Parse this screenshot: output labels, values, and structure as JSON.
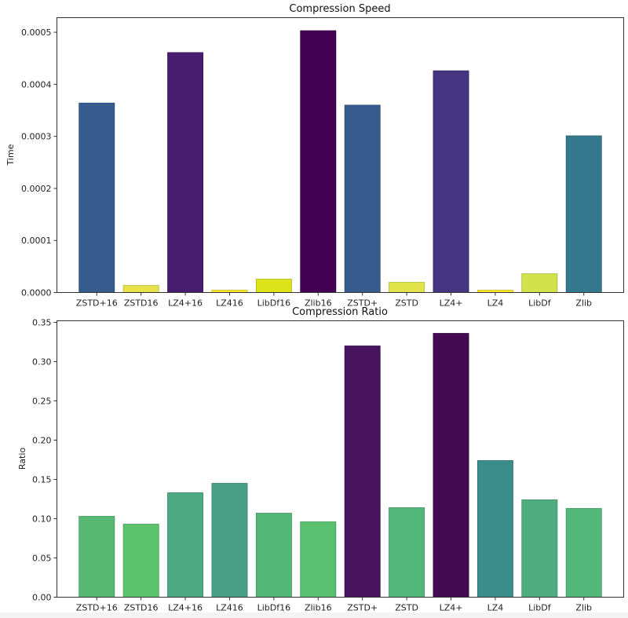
{
  "chart_data": [
    {
      "type": "bar",
      "title": "Compression Speed",
      "xlabel": "",
      "ylabel": "Time",
      "categories": [
        "ZSTD+16",
        "ZSTD16",
        "LZ4+16",
        "LZ416",
        "LibDf16",
        "Zlib16",
        "ZSTD+",
        "ZSTD",
        "LZ4+",
        "LZ4",
        "LibDf",
        "Zlib"
      ],
      "values": [
        0.000364,
        1.36e-05,
        0.000461,
        4.5e-06,
        2.56e-05,
        0.000503,
        0.00036,
        1.96e-05,
        0.000426,
        4.5e-06,
        3.6e-05,
        0.000301
      ],
      "ylim": [
        0,
        0.000528
      ],
      "yticks": [
        0.0,
        0.0001,
        0.0002,
        0.0003,
        0.0004,
        0.0005
      ],
      "ytick_labels": [
        "0.0000",
        "0.0001",
        "0.0002",
        "0.0003",
        "0.0004",
        "0.0005"
      ],
      "colormap": "viridis",
      "bar_colors": [
        "#365c8d",
        "#e8e34a",
        "#481d6f",
        "#fde725",
        "#dde318",
        "#440154",
        "#365c8d",
        "#e2e34a",
        "#453581",
        "#fde725",
        "#d2e24a",
        "#33788d"
      ],
      "grid": false,
      "legend": "none"
    },
    {
      "type": "bar",
      "title": "Compression Ratio",
      "xlabel": "",
      "ylabel": "Ratio",
      "categories": [
        "ZSTD+16",
        "ZSTD16",
        "LZ4+16",
        "LZ416",
        "LibDf16",
        "Zlib16",
        "ZSTD+",
        "ZSTD",
        "LZ4+",
        "LZ4",
        "LibDf",
        "Zlib"
      ],
      "values": [
        0.103,
        0.093,
        0.133,
        0.145,
        0.107,
        0.096,
        0.32,
        0.114,
        0.336,
        0.174,
        0.124,
        0.113
      ],
      "ylim": [
        0,
        0.352
      ],
      "yticks": [
        0.0,
        0.05,
        0.1,
        0.15,
        0.2,
        0.25,
        0.3,
        0.35
      ],
      "ytick_labels": [
        "0.00",
        "0.05",
        "0.10",
        "0.15",
        "0.20",
        "0.25",
        "0.30",
        "0.35"
      ],
      "colormap": "viridis_r",
      "bar_colors": [
        "#55b974",
        "#5ac36b",
        "#4caa82",
        "#47a086",
        "#53b777",
        "#58c06f",
        "#48135f",
        "#52b679",
        "#440a52",
        "#3b8c8c",
        "#4dad7f",
        "#53b77a"
      ],
      "grid": false,
      "legend": "none"
    }
  ]
}
